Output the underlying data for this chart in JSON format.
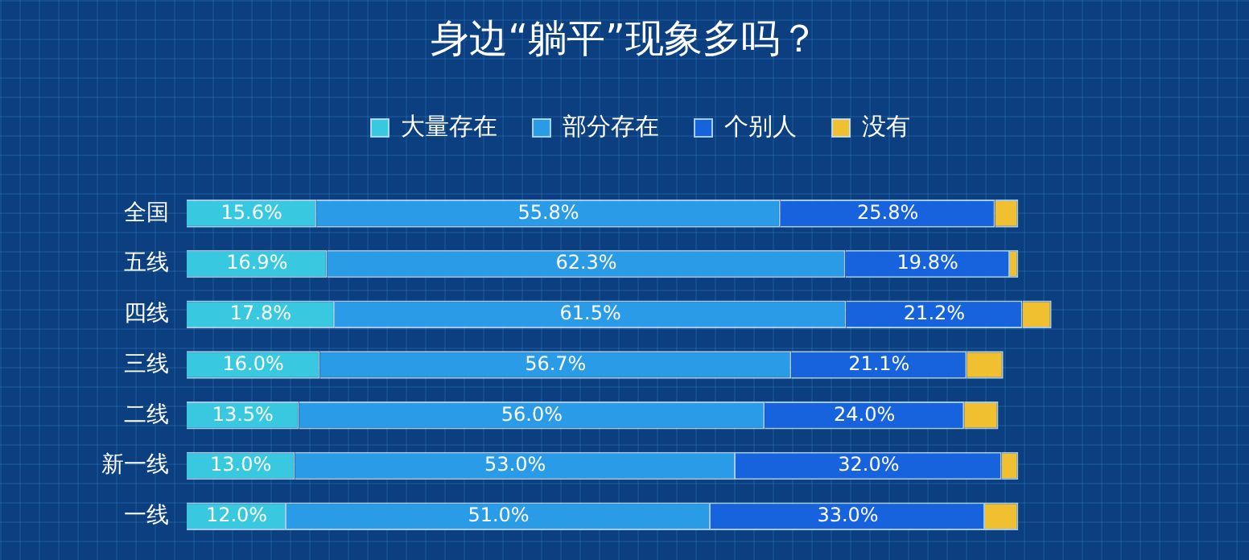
{
  "chart_data": {
    "type": "bar",
    "orientation": "horizontal",
    "stacked": true,
    "title": "身边“躺平”现象多吗？",
    "categories": [
      "全国",
      "五线",
      "四线",
      "三线",
      "二线",
      "新一线",
      "一线"
    ],
    "series": [
      {
        "name": "大量存在",
        "color": "#38c8e0",
        "values": [
          15.6,
          16.9,
          17.8,
          16.0,
          13.5,
          13.0,
          12.0
        ],
        "value_labels": [
          "15.6%",
          "16.9%",
          "17.8%",
          "16.0%",
          "13.5%",
          "13.0%",
          "12.0%"
        ]
      },
      {
        "name": "部分存在",
        "color": "#2a9be6",
        "values": [
          55.8,
          62.3,
          61.5,
          56.7,
          56.0,
          53.0,
          51.0
        ],
        "value_labels": [
          "55.8%",
          "62.3%",
          "61.5%",
          "56.7%",
          "56.0%",
          "53.0%",
          "51.0%"
        ]
      },
      {
        "name": "个别人",
        "color": "#1763de",
        "values": [
          25.8,
          19.8,
          21.2,
          21.1,
          24.0,
          32.0,
          33.0
        ],
        "value_labels": [
          "25.8%",
          "19.8%",
          "21.2%",
          "21.1%",
          "24.0%",
          "32.0%",
          "33.0%"
        ]
      },
      {
        "name": "没有",
        "color": "#f0c030",
        "values": [
          2.8,
          1.0,
          3.5,
          4.4,
          4.1,
          2.0,
          4.0
        ]
      }
    ],
    "tick_labels": "y",
    "grid": false,
    "legend": "top"
  }
}
